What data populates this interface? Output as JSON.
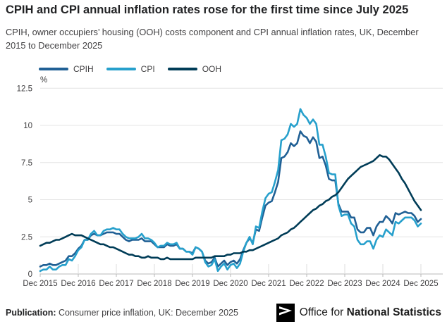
{
  "header": {
    "title": "CPIH and CPI annual inflation rates rose for the first time since July 2025",
    "subtitle": "CPIH, owner occupiers’ housing (OOH) costs component and CPI annual inflation rates, UK, December 2015 to December 2025"
  },
  "legend": [
    {
      "label": "CPIH",
      "color": "#206095"
    },
    {
      "label": "CPI",
      "color": "#27a0cc"
    },
    {
      "label": "OOH",
      "color": "#003c57"
    }
  ],
  "chart_data": {
    "type": "line",
    "title": "CPIH, OOH costs component and CPI annual inflation rates, UK, December 2015 to December 2025",
    "unit_label": "%",
    "ylabel": "%",
    "xlabel": "",
    "ylim": [
      0,
      12.5
    ],
    "grid": "horizontal",
    "legend_position": "top-left",
    "x_tick_labels": [
      "Dec 2015",
      "Dec 2016",
      "Dec 2017",
      "Dec 2018",
      "Dec 2019",
      "Dec 2020",
      "Dec 2021",
      "Dec 2022",
      "Dec 2023",
      "Dec 2024",
      "Dec 2025"
    ],
    "y_ticks": [
      0,
      2.5,
      5,
      7.5,
      10,
      12.5
    ],
    "y_tick_labels": [
      "0",
      "2.5",
      "5",
      "7.5",
      "10",
      "12.5"
    ],
    "x_frequency": "monthly",
    "x_start": "Dec 2015",
    "x_end": "Dec 2025",
    "series": [
      {
        "name": "CPIH",
        "color": "#206095",
        "values": [
          0.5,
          0.6,
          0.6,
          0.7,
          0.6,
          0.6,
          0.7,
          0.8,
          0.9,
          1.2,
          1.2,
          1.4,
          1.7,
          1.9,
          2.3,
          2.3,
          2.6,
          2.7,
          2.6,
          2.6,
          2.7,
          2.8,
          2.8,
          2.8,
          2.7,
          2.7,
          2.5,
          2.3,
          2.2,
          2.3,
          2.3,
          2.3,
          2.4,
          2.2,
          2.2,
          2.2,
          2.0,
          1.8,
          1.8,
          1.8,
          2.0,
          1.9,
          1.9,
          2.0,
          1.7,
          1.7,
          1.5,
          1.5,
          1.4,
          1.8,
          1.7,
          1.5,
          0.9,
          0.7,
          0.8,
          1.1,
          0.5,
          0.7,
          0.9,
          0.6,
          0.8,
          0.9,
          0.7,
          1.0,
          1.6,
          2.1,
          2.4,
          2.1,
          3.0,
          2.9,
          3.8,
          4.6,
          4.8,
          4.9,
          5.5,
          6.2,
          7.8,
          7.9,
          8.2,
          8.8,
          8.6,
          8.8,
          9.6,
          9.3,
          9.2,
          8.8,
          9.2,
          8.9,
          7.8,
          7.9,
          7.3,
          6.4,
          6.3,
          6.3,
          4.7,
          4.2,
          4.2,
          4.2,
          3.8,
          3.8,
          3.0,
          2.8,
          2.8,
          3.1,
          3.1,
          2.6,
          3.2,
          3.5,
          3.5,
          3.9,
          3.7,
          3.4,
          4.1,
          4.0,
          4.1,
          4.2,
          4.1,
          4.1,
          3.9,
          3.5,
          3.7
        ]
      },
      {
        "name": "CPI",
        "color": "#27a0cc",
        "values": [
          0.2,
          0.3,
          0.3,
          0.5,
          0.3,
          0.3,
          0.5,
          0.6,
          0.6,
          1.0,
          0.9,
          1.2,
          1.6,
          1.8,
          2.3,
          2.3,
          2.7,
          2.9,
          2.6,
          2.6,
          2.9,
          3.0,
          3.0,
          3.1,
          3.0,
          3.0,
          2.7,
          2.5,
          2.4,
          2.4,
          2.4,
          2.5,
          2.7,
          2.4,
          2.4,
          2.3,
          2.1,
          1.8,
          1.9,
          1.9,
          2.1,
          2.0,
          2.0,
          2.1,
          1.7,
          1.7,
          1.5,
          1.5,
          1.3,
          1.8,
          1.7,
          1.5,
          0.8,
          0.5,
          0.6,
          1.0,
          0.2,
          0.5,
          0.7,
          0.3,
          0.6,
          0.7,
          0.4,
          0.7,
          1.5,
          2.1,
          2.5,
          2.0,
          3.2,
          3.1,
          4.2,
          5.1,
          5.4,
          5.5,
          6.2,
          7.0,
          9.0,
          9.1,
          9.4,
          10.1,
          9.9,
          10.1,
          11.1,
          10.7,
          10.5,
          10.1,
          10.4,
          10.1,
          8.7,
          8.7,
          7.9,
          6.8,
          6.7,
          6.7,
          4.6,
          3.9,
          4.0,
          4.0,
          3.4,
          3.2,
          2.3,
          2.0,
          2.0,
          2.2,
          2.2,
          1.7,
          2.3,
          2.6,
          2.5,
          3.0,
          2.8,
          2.6,
          3.5,
          3.4,
          3.6,
          3.8,
          3.8,
          3.8,
          3.6,
          3.2,
          3.4
        ]
      },
      {
        "name": "OOH",
        "color": "#003c57",
        "values": [
          1.9,
          2.0,
          2.1,
          2.1,
          2.2,
          2.3,
          2.3,
          2.4,
          2.5,
          2.6,
          2.7,
          2.6,
          2.6,
          2.6,
          2.5,
          2.4,
          2.3,
          2.2,
          2.1,
          2.0,
          2.0,
          1.9,
          1.8,
          1.8,
          1.7,
          1.6,
          1.5,
          1.4,
          1.3,
          1.3,
          1.2,
          1.2,
          1.1,
          1.1,
          1.2,
          1.1,
          1.1,
          1.1,
          1.0,
          1.0,
          1.1,
          1.0,
          1.0,
          1.0,
          1.0,
          1.0,
          1.0,
          1.0,
          1.0,
          1.1,
          1.1,
          1.1,
          1.1,
          1.1,
          1.1,
          1.2,
          1.2,
          1.2,
          1.2,
          1.3,
          1.3,
          1.4,
          1.4,
          1.4,
          1.5,
          1.5,
          1.6,
          1.6,
          1.7,
          1.8,
          1.9,
          2.0,
          2.1,
          2.2,
          2.3,
          2.4,
          2.6,
          2.7,
          2.8,
          3.0,
          3.1,
          3.3,
          3.5,
          3.7,
          3.9,
          4.1,
          4.3,
          4.4,
          4.6,
          4.7,
          4.9,
          5.0,
          5.2,
          5.3,
          5.5,
          5.8,
          6.1,
          6.4,
          6.6,
          6.8,
          7.0,
          7.2,
          7.3,
          7.4,
          7.5,
          7.6,
          7.8,
          8.0,
          7.9,
          7.9,
          7.7,
          7.4,
          7.1,
          6.8,
          6.4,
          6.1,
          5.7,
          5.3,
          4.9,
          4.6,
          4.3
        ]
      }
    ]
  },
  "footer": {
    "publication_label": "Publication:",
    "publication_text": " Consumer price inflation, UK: December 2025",
    "logo_text_regular": "Office for ",
    "logo_text_bold": "National Statistics"
  },
  "colors": {
    "grid": "#e4e4e4",
    "axis": "#b9b9b9",
    "tick": "#dedede",
    "axis_text": "#414042"
  }
}
